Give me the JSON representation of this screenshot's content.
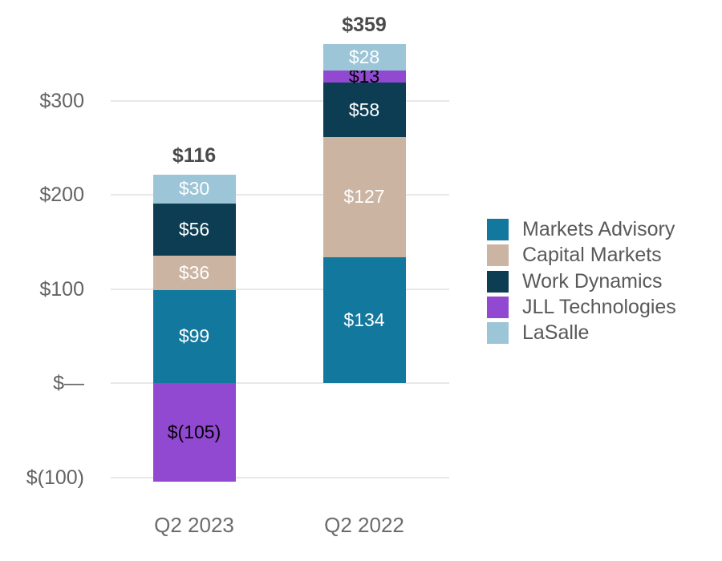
{
  "chart_data": {
    "type": "bar",
    "stacked": true,
    "orientation": "vertical",
    "title": "",
    "grid": true,
    "legend_position": "right",
    "categories": [
      "Q2 2023",
      "Q2 2022"
    ],
    "series": [
      {
        "name": "Markets Advisory",
        "color": "#12789E",
        "label_color": "#ffffff",
        "values": [
          99,
          134
        ],
        "labels": [
          "$99",
          "$134"
        ]
      },
      {
        "name": "Capital Markets",
        "color": "#CBB4A2",
        "label_color": "#ffffff",
        "values": [
          36,
          127
        ],
        "labels": [
          "$36",
          "$127"
        ]
      },
      {
        "name": "Work Dynamics",
        "color": "#0C3D53",
        "label_color": "#ffffff",
        "values": [
          56,
          58
        ],
        "labels": [
          "$56",
          "$58"
        ]
      },
      {
        "name": "JLL Technologies",
        "color": "#9249D1",
        "label_color": "#000000",
        "values": [
          -105,
          13
        ],
        "labels": [
          "$(105)",
          "$13"
        ]
      },
      {
        "name": "LaSalle",
        "color": "#9CC5D8",
        "label_color": "#ffffff",
        "values": [
          30,
          28
        ],
        "labels": [
          "$30",
          "$28"
        ]
      }
    ],
    "totals": [
      "$116",
      "$359"
    ],
    "y_ticks": [
      {
        "value": 300,
        "label": "$300"
      },
      {
        "value": 200,
        "label": "$200"
      },
      {
        "value": 100,
        "label": "$100"
      },
      {
        "value": 0,
        "label": "$—"
      },
      {
        "value": -100,
        "label": "$(100)"
      }
    ],
    "ylim": [
      -150,
      410
    ],
    "colors": {
      "gridline": "#e8e8e8",
      "tick_text": "#636363",
      "total_text": "#4a4a4c",
      "legend_text": "#58595b"
    }
  }
}
